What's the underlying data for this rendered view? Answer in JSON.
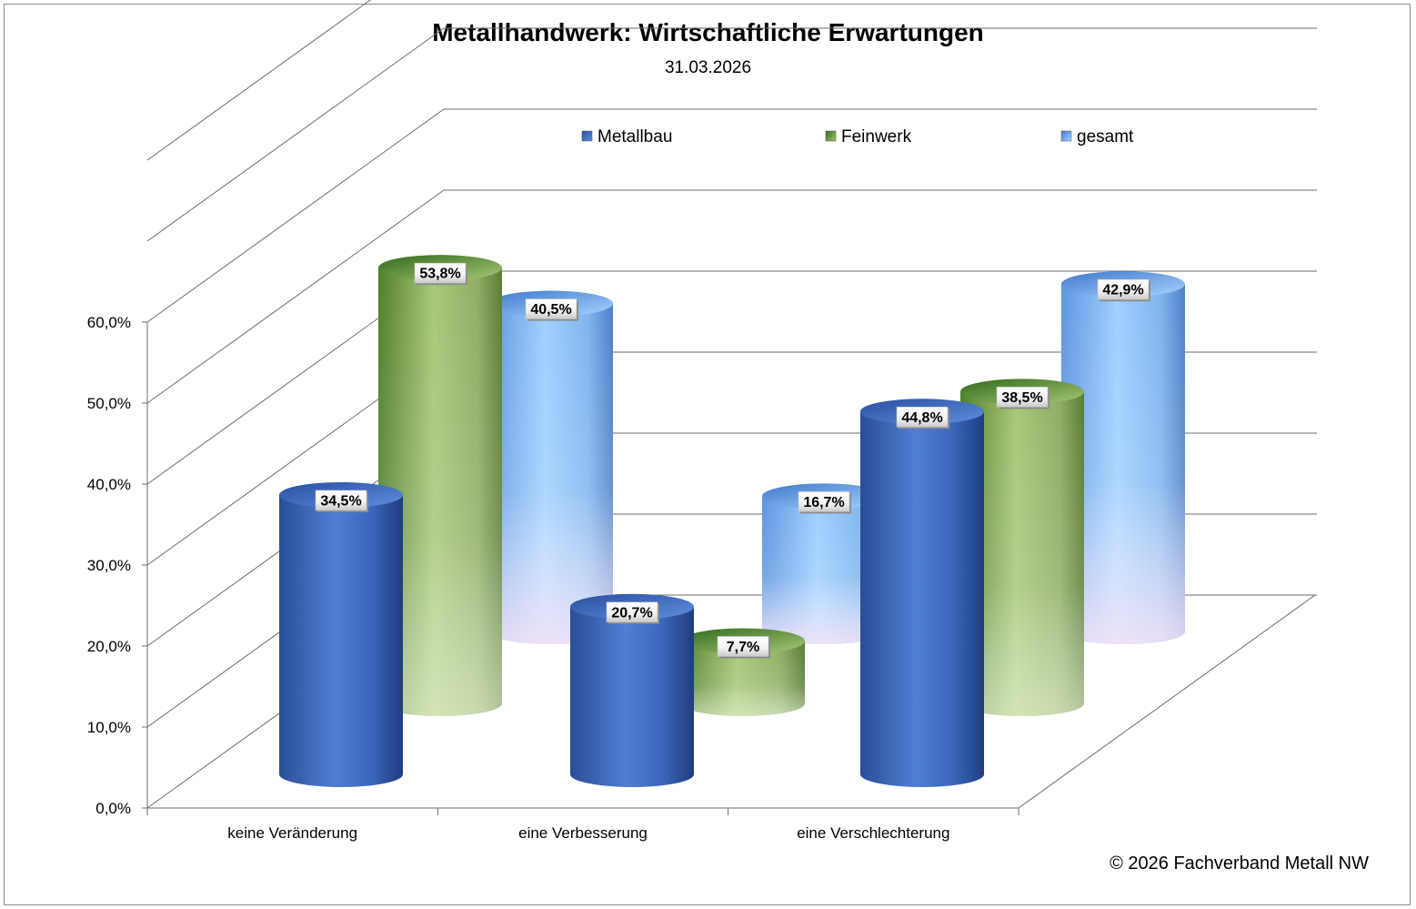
{
  "chart_data": {
    "type": "bar",
    "style": "3d-cylinder",
    "title": "Metallhandwerk: Wirtschaftliche Erwartungen",
    "subtitle": "31.03.2026",
    "categories": [
      "keine Veränderung",
      "eine Verbesserung",
      "eine Verschlechterung"
    ],
    "series": [
      {
        "name": "Metallbau",
        "values": [
          34.5,
          20.7,
          44.8
        ],
        "labels": [
          "34,5%",
          "20,7%",
          "44,8%"
        ],
        "color": "#3a63b8"
      },
      {
        "name": "Feinwerk",
        "values": [
          53.8,
          7.7,
          38.5
        ],
        "labels": [
          "53,8%",
          "7,7%",
          "38,5%"
        ],
        "color": "#8fb25a"
      },
      {
        "name": "gesamt",
        "values": [
          40.5,
          16.7,
          42.9
        ],
        "labels": [
          "40,5%",
          "16,7%",
          "42,9%"
        ],
        "color": "#7fb6f0"
      }
    ],
    "yticks": [
      "0,0%",
      "10,0%",
      "20,0%",
      "30,0%",
      "40,0%",
      "50,0%",
      "60,0%"
    ],
    "ylim": [
      0,
      60
    ],
    "grid": true,
    "legend": "top"
  },
  "footer": {
    "copyright": "© 2026 Fachverband Metall NW"
  }
}
